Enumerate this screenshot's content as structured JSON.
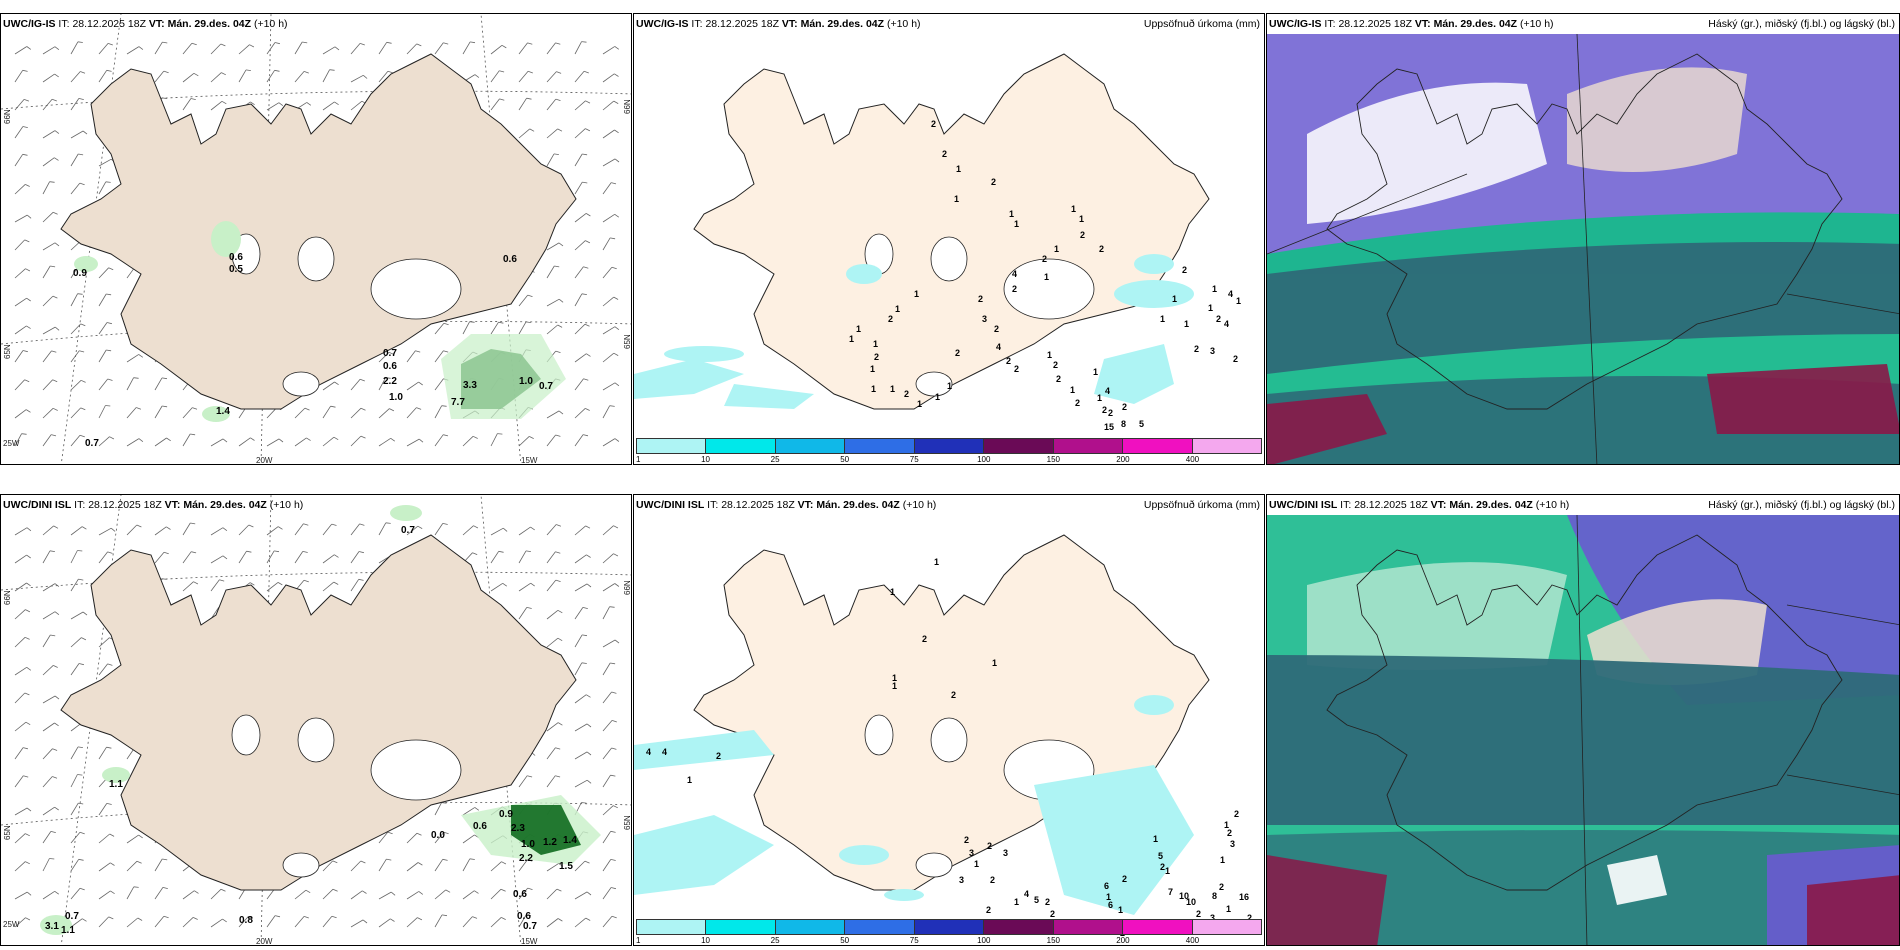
{
  "panels": {
    "top_left": {
      "model": "UWC/IG-IS",
      "it_label": "IT:",
      "it_value": "28.12.2025 18Z",
      "vt_label": "VT:",
      "vt_value": "Mán. 29.des. 04Z",
      "lead": "(+10 h)",
      "right_title": "",
      "coords": {
        "lat_n66_left": "66N",
        "lat_n65_left": "65N",
        "lat_n65_right": "65N",
        "lat_n66_right": "66N",
        "lon_25w": "25W",
        "lon_20w": "20W",
        "lon_15w": "15W"
      },
      "labels": [
        "0.9",
        "0.6",
        "0.5",
        "0.7",
        "0.6",
        "2.2",
        "1.0",
        "1.4",
        "0.7",
        "3.3",
        "7.7",
        "1.0",
        "0.7",
        "0.6"
      ]
    },
    "top_middle": {
      "model": "UWC/IG-IS",
      "it_label": "IT:",
      "it_value": "28.12.2025 18Z",
      "vt_label": "VT:",
      "vt_value": "Mán. 29.des. 04Z",
      "lead": "(+10 h)",
      "right_title": "Uppsöfnuð úrkoma (mm)",
      "labels": [
        "2",
        "2",
        "1",
        "1",
        "2",
        "1",
        "1",
        "1",
        "1",
        "2",
        "1",
        "2",
        "2",
        "1",
        "4",
        "2",
        "1",
        "1",
        "2",
        "1",
        "1",
        "1",
        "2",
        "1",
        "1",
        "1",
        "2",
        "1",
        "1",
        "1",
        "2",
        "2",
        "3",
        "2",
        "4",
        "2",
        "2",
        "1",
        "2",
        "2",
        "1",
        "2",
        "1",
        "1",
        "2",
        "2",
        "4",
        "2",
        "15",
        "8",
        "5",
        "1",
        "1",
        "1",
        "2",
        "3",
        "2",
        "4",
        "2",
        "1",
        "2",
        "1",
        "4",
        "1"
      ]
    },
    "top_right": {
      "model": "UWC/IG-IS",
      "it_label": "IT:",
      "it_value": "28.12.2025 18Z",
      "vt_label": "VT:",
      "vt_value": "Mán. 29.des. 04Z",
      "lead": "(+10 h)",
      "right_title": "Háský (gr.), miðský (fj.bl.) og lágský (bl.)"
    },
    "bottom_left": {
      "model": "UWC/DINI ISL",
      "it_label": "IT:",
      "it_value": "28.12.2025 18Z",
      "vt_label": "VT:",
      "vt_value": "Mán. 29.des. 04Z",
      "lead": "(+10 h)",
      "right_title": "",
      "coords": {
        "lat_n66_left": "66N",
        "lat_n65_left": "65N",
        "lat_n65_right": "65N",
        "lat_n66_right": "66N",
        "lon_25w": "25W",
        "lon_20w": "20W",
        "lon_15w": "15W"
      },
      "labels": [
        "0.7",
        "1.1",
        "0.0",
        "0.6",
        "0.9",
        "2.3",
        "1.0",
        "1.2",
        "1.4",
        "2.2",
        "1.5",
        "0.6",
        "0.6",
        "0.7",
        "3.1",
        "0.7",
        "1.1",
        "0.8"
      ]
    },
    "bottom_middle": {
      "model": "UWC/DINI ISL",
      "it_label": "IT:",
      "it_value": "28.12.2025 18Z",
      "vt_label": "VT:",
      "vt_value": "Mán. 29.des. 04Z",
      "lead": "(+10 h)",
      "right_title": "Uppsöfnuð úrkoma (mm)",
      "labels": [
        "1",
        "2",
        "1",
        "1",
        "1",
        "2",
        "1",
        "4",
        "4",
        "2",
        "1",
        "2",
        "3",
        "1",
        "2",
        "3",
        "3",
        "2",
        "2",
        "1",
        "4",
        "5",
        "2",
        "2",
        "1",
        "6",
        "1",
        "6",
        "1",
        "2",
        "2",
        "1",
        "5",
        "2",
        "1",
        "7",
        "10",
        "10",
        "2",
        "3",
        "8",
        "2",
        "16",
        "2",
        "1",
        "1",
        "1",
        "2",
        "3",
        "2"
      ]
    },
    "bottom_right": {
      "model": "UWC/DINI ISL",
      "it_label": "IT:",
      "it_value": "28.12.2025 18Z",
      "vt_label": "VT:",
      "vt_value": "Mán. 29.des. 04Z",
      "lead": "(+10 h)",
      "right_title": "Háský (gr.), miðský (fj.bl.) og lágský (bl.)"
    }
  },
  "precip_legend": {
    "colors": [
      "#aef4f4",
      "#00e8ea",
      "#10b8e8",
      "#2e6ee6",
      "#2030b8",
      "#6a0a56",
      "#b0108c",
      "#f010c0",
      "#f4a8ee"
    ],
    "ticks": [
      "1",
      "10",
      "25",
      "50",
      "75",
      "100",
      "150",
      "200",
      "400"
    ]
  },
  "colors": {
    "land": "#eddfd0",
    "land_precip": "#fdf0e2",
    "coast": "#222222",
    "precip_light": "#aef4f4",
    "wind_precip_light": "#c8f0c8",
    "wind_precip_dark": "#0e6a1e",
    "cloud_low": "#2e6a78",
    "cloud_mid": "#18b88c",
    "cloud_high": "#6a5ad0",
    "cloud_red": "#8a1848"
  }
}
